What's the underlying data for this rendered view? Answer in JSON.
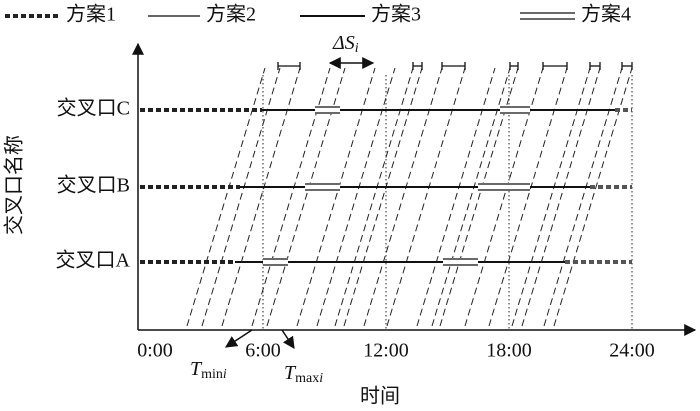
{
  "legend": [
    "方案1",
    "方案2",
    "方案3",
    "方案4"
  ],
  "y_axis_title": "交叉口名称",
  "x_axis_title": "时间",
  "rows": [
    "交叉口C",
    "交叉口B",
    "交叉口A"
  ],
  "x_ticks": [
    "0:00",
    "6:00",
    "12:00",
    "18:00",
    "24:00"
  ],
  "annotations": {
    "delta": {
      "symbol": "ΔS",
      "sub": "i"
    },
    "tmin": {
      "symbol": "T",
      "sub": "min",
      "sub_i": "i"
    },
    "tmax": {
      "symbol": "T",
      "sub": "max",
      "sub_i": "i"
    }
  }
}
